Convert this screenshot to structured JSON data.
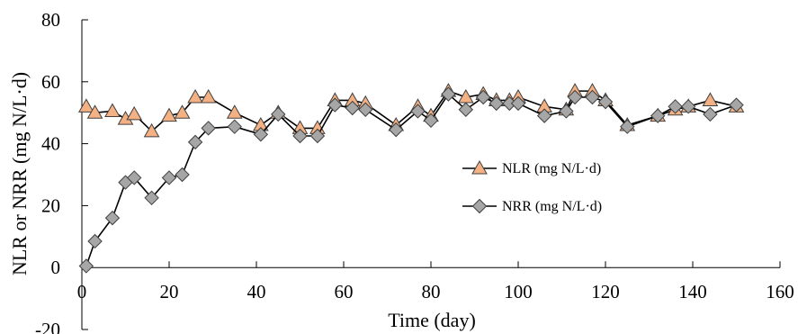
{
  "chart_data": {
    "type": "line",
    "xlabel": "Time (day)",
    "ylabel": "NLR or NRR (mg N/L·d)",
    "xlim": [
      0,
      160
    ],
    "ylim": [
      -20,
      80
    ],
    "xticks": [
      0,
      20,
      40,
      60,
      80,
      100,
      120,
      140,
      160
    ],
    "yticks": [
      -20,
      0,
      20,
      40,
      60,
      80
    ],
    "x_axis_crosses_at_y": 0,
    "grid": false,
    "legend_position": "right-middle",
    "colors": {
      "line": "#000000",
      "nlr_marker_fill": "#F4B183",
      "nrr_marker_fill": "#A6A6A6",
      "marker_stroke": "#404040"
    },
    "series": [
      {
        "name": "NLR (mg N/L·d)",
        "marker": "triangle",
        "x": [
          1,
          3,
          7,
          10,
          12,
          16,
          20,
          23,
          26,
          29,
          35,
          41,
          45,
          50,
          54,
          58,
          62,
          65,
          72,
          77,
          80,
          84,
          88,
          92,
          95,
          98,
          100,
          106,
          111,
          113,
          117,
          120,
          125,
          132,
          136,
          139,
          144,
          150
        ],
        "values": [
          52,
          50,
          50.5,
          48,
          49.5,
          44,
          49,
          50,
          55,
          55,
          50,
          46,
          50,
          45,
          45,
          54,
          54,
          53,
          46,
          52,
          49,
          57,
          55,
          56,
          54,
          54,
          55,
          52,
          51,
          57,
          57,
          54,
          46,
          49,
          51,
          52,
          54,
          52
        ]
      },
      {
        "name": "NRR (mg N/L·d)",
        "marker": "diamond",
        "x": [
          1,
          3,
          7,
          10,
          12,
          16,
          20,
          23,
          26,
          29,
          35,
          41,
          45,
          50,
          54,
          58,
          62,
          65,
          72,
          77,
          80,
          84,
          88,
          92,
          95,
          98,
          100,
          106,
          111,
          113,
          117,
          120,
          125,
          132,
          136,
          139,
          144,
          150
        ],
        "values": [
          0.5,
          8.5,
          16,
          27.5,
          29,
          22.5,
          29,
          30,
          40.5,
          45,
          45.5,
          43,
          49.5,
          42.5,
          42.5,
          52.5,
          51.5,
          51,
          44.5,
          50.5,
          47.5,
          56,
          51,
          55,
          53,
          53,
          53,
          49,
          50.5,
          55,
          55,
          53.5,
          45.5,
          49,
          52,
          52,
          49.5,
          52.5
        ]
      }
    ]
  }
}
